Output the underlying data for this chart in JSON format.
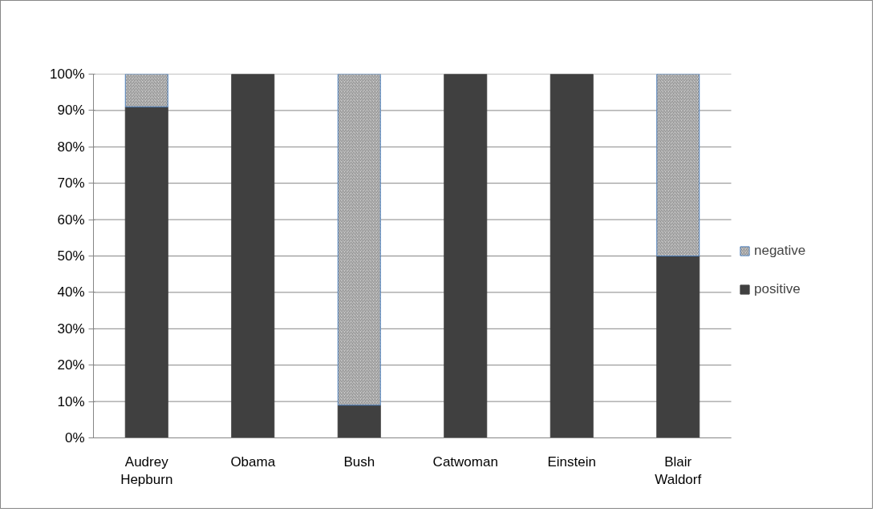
{
  "chart_data": {
    "type": "bar",
    "stacked": true,
    "categories": [
      "Audrey Hepburn",
      "Obama",
      "Bush",
      "Catwoman",
      "Einstein",
      "Blair Waldorf"
    ],
    "series": [
      {
        "name": "positive",
        "color": "#404040",
        "values": [
          91,
          100,
          9,
          100,
          100,
          50
        ]
      },
      {
        "name": "negative",
        "color": "#d0d0d0",
        "values": [
          9,
          0,
          91,
          0,
          0,
          50
        ]
      }
    ],
    "ylim": [
      0,
      100
    ],
    "yticks": [
      {
        "value": 0,
        "label": "0%"
      },
      {
        "value": 10,
        "label": "10%"
      },
      {
        "value": 20,
        "label": "20%"
      },
      {
        "value": 30,
        "label": "30%"
      },
      {
        "value": 40,
        "label": "40%"
      },
      {
        "value": 50,
        "label": "50%"
      },
      {
        "value": 60,
        "label": "60%"
      },
      {
        "value": 70,
        "label": "70%"
      },
      {
        "value": 80,
        "label": "80%"
      },
      {
        "value": 90,
        "label": "90%"
      },
      {
        "value": 100,
        "label": "100%"
      }
    ],
    "grid": "y",
    "legend": "right"
  }
}
